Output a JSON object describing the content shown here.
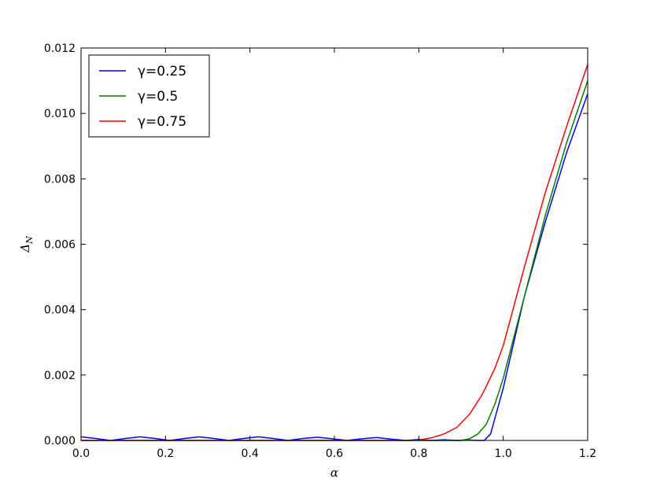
{
  "chart_data": {
    "type": "line",
    "title": "",
    "xlabel": "α",
    "ylabel": "Δ_N",
    "xlim": [
      0.0,
      1.2
    ],
    "ylim": [
      0.0,
      0.012
    ],
    "x_ticks": [
      "0.0",
      "0.2",
      "0.4",
      "0.6",
      "0.8",
      "1.0",
      "1.2"
    ],
    "y_ticks": [
      "0.000",
      "0.002",
      "0.004",
      "0.006",
      "0.008",
      "0.010",
      "0.012"
    ],
    "grid": false,
    "legend_position": "top-left",
    "series": [
      {
        "name": "γ=0.25",
        "color": "#0000ff",
        "x": [
          0.0,
          0.035,
          0.07,
          0.105,
          0.14,
          0.175,
          0.21,
          0.245,
          0.28,
          0.315,
          0.35,
          0.385,
          0.42,
          0.455,
          0.49,
          0.525,
          0.56,
          0.595,
          0.63,
          0.665,
          0.7,
          0.735,
          0.77,
          0.8,
          0.83,
          0.86,
          0.89,
          0.92,
          0.94,
          0.955,
          0.97,
          1.0,
          1.05,
          1.1,
          1.15,
          1.2
        ],
        "values": [
          0.00011,
          6e-05,
          0.0,
          6e-05,
          0.00011,
          6e-05,
          0.0,
          6e-05,
          0.00011,
          6e-05,
          0.0,
          6e-05,
          0.00011,
          6e-05,
          0.0,
          6e-05,
          0.0001,
          5e-05,
          0.0,
          5e-05,
          9e-05,
          4e-05,
          0.0,
          3e-05,
          0.0,
          2e-05,
          0.0,
          1e-05,
          0.0,
          0.0,
          0.0002,
          0.0016,
          0.0044,
          0.0067,
          0.0088,
          0.0106
        ]
      },
      {
        "name": "γ=0.5",
        "color": "#008000",
        "x": [
          0.0,
          0.8,
          0.85,
          0.88,
          0.9,
          0.92,
          0.94,
          0.96,
          0.98,
          1.0,
          1.05,
          1.1,
          1.15,
          1.2
        ],
        "values": [
          0.0,
          0.0,
          0.0,
          0.0,
          0.0,
          5e-05,
          0.0002,
          0.0005,
          0.0011,
          0.0019,
          0.0044,
          0.0069,
          0.0091,
          0.011
        ]
      },
      {
        "name": "γ=0.75",
        "color": "#ff0000",
        "x": [
          0.0,
          0.78,
          0.8,
          0.83,
          0.86,
          0.89,
          0.92,
          0.95,
          0.98,
          1.0,
          1.05,
          1.1,
          1.15,
          1.2
        ],
        "values": [
          0.0,
          0.0,
          1e-05,
          8e-05,
          0.0002,
          0.0004,
          0.0008,
          0.0014,
          0.0022,
          0.0029,
          0.0053,
          0.0076,
          0.0096,
          0.0115
        ]
      }
    ]
  }
}
